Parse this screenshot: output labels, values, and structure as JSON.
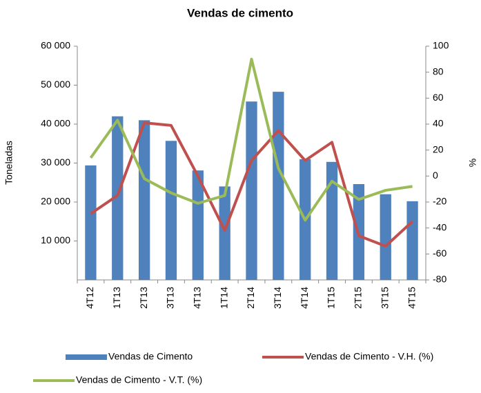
{
  "chart_data": {
    "type": "bar-line",
    "title": "Vendas de cimento",
    "y_label": "Toneladas",
    "y2_label": "%",
    "categories": [
      "4T12",
      "1T13",
      "2T13",
      "3T13",
      "4T13",
      "1T14",
      "2T14",
      "3T14",
      "4T14",
      "1T15",
      "2T15",
      "3T15",
      "4T15"
    ],
    "series": [
      {
        "name": "Vendas de Cimento",
        "type": "bar",
        "color": "#4f81bd",
        "values": [
          29400,
          42000,
          41000,
          35700,
          28100,
          24000,
          45800,
          48300,
          31000,
          30300,
          24600,
          22000,
          20200
        ]
      },
      {
        "name": "Vendas de Cimento - V.H. (%)",
        "type": "line",
        "axis": "y2",
        "color": "#c0504d",
        "values": [
          -29,
          -15,
          41,
          39,
          0,
          -42,
          12,
          35,
          12,
          26,
          -46,
          -54,
          -35
        ]
      },
      {
        "name": "Vendas de Cimento - V.T. (%)",
        "type": "line",
        "axis": "y2",
        "color": "#9bbb59",
        "values": [
          14,
          43,
          -2,
          -13,
          -21,
          -15,
          90,
          6,
          -34,
          -4,
          -18,
          -11,
          -8
        ]
      }
    ],
    "ylim": [
      0,
      60000
    ],
    "yticks": [
      {
        "value": 10000,
        "label": "10 000"
      },
      {
        "value": 20000,
        "label": "20 000"
      },
      {
        "value": 30000,
        "label": "30 000"
      },
      {
        "value": 40000,
        "label": "40 000"
      },
      {
        "value": 50000,
        "label": "50 000"
      },
      {
        "value": 60000,
        "label": "60 000"
      }
    ],
    "y2lim": [
      -80,
      100
    ],
    "y2ticks": [
      -80,
      -60,
      -40,
      -20,
      0,
      20,
      40,
      60,
      80,
      100
    ],
    "legend": "bottom"
  }
}
